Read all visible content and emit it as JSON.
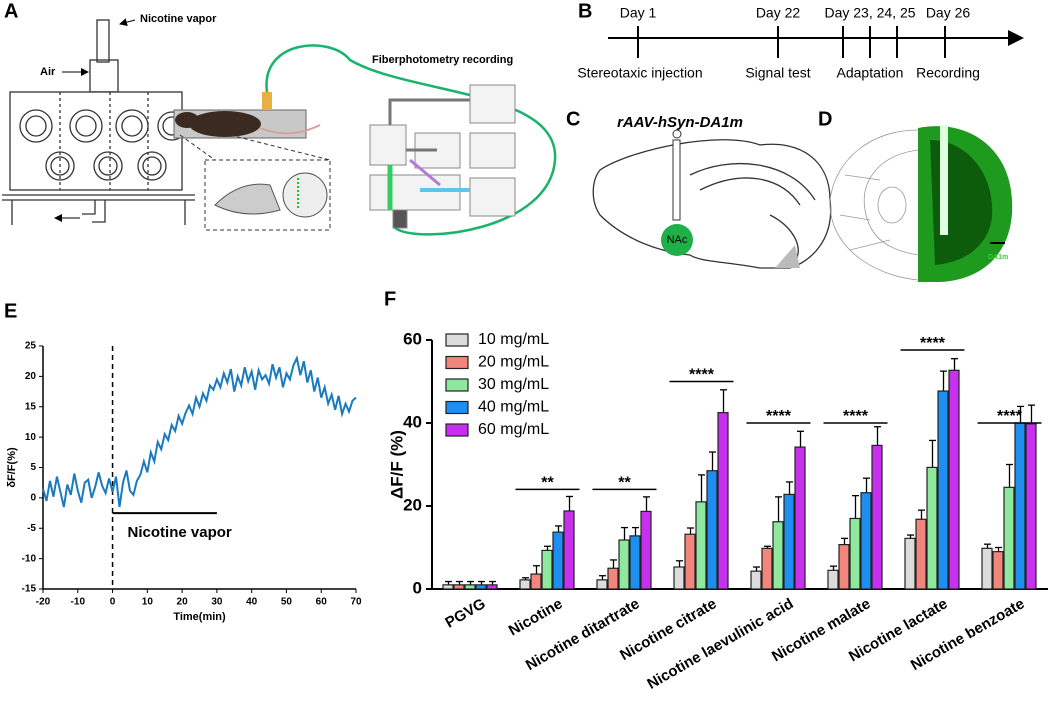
{
  "panels": {
    "a": {
      "label": "A",
      "nicotine_vapor": "Nicotine vapor",
      "air": "Air",
      "recording": "Fiberphotometry recording"
    },
    "b": {
      "label": "B",
      "timeline": [
        {
          "day": "Day 1",
          "event": "Stereotaxic injection"
        },
        {
          "day": "Day 22",
          "event": "Signal test"
        },
        {
          "day": "Day 23, 24, 25",
          "event": "Adaptation"
        },
        {
          "day": "Day 26",
          "event": "Recording"
        }
      ]
    },
    "c": {
      "label": "C",
      "virus": "rAAV-hSyn-DA1m",
      "region": "NAc"
    },
    "d": {
      "label": "D",
      "stain": "DA1m"
    }
  },
  "chart_data": [
    {
      "type": "line",
      "panel_label": "E",
      "x": [
        -20,
        -19,
        -18,
        -17,
        -16,
        -15,
        -14,
        -13,
        -12,
        -11,
        -10,
        -9,
        -8,
        -7,
        -6,
        -5,
        -4,
        -3,
        -2,
        -1,
        0,
        1,
        2,
        3,
        4,
        5,
        6,
        7,
        8,
        9,
        10,
        11,
        12,
        13,
        14,
        15,
        16,
        17,
        18,
        19,
        20,
        21,
        22,
        23,
        24,
        25,
        26,
        27,
        28,
        29,
        30,
        31,
        32,
        33,
        34,
        35,
        36,
        37,
        38,
        39,
        40,
        41,
        42,
        43,
        44,
        45,
        46,
        47,
        48,
        49,
        50,
        51,
        52,
        53,
        54,
        55,
        56,
        57,
        58,
        59,
        60,
        61,
        62,
        63,
        64,
        65,
        66,
        67,
        68,
        69,
        70
      ],
      "series": [
        {
          "color": "#1a7abf",
          "values": [
            1.5,
            -0.5,
            2.8,
            0.2,
            3.5,
            1.0,
            -1.5,
            2.2,
            0.5,
            4.0,
            1.2,
            -0.8,
            2.5,
            3.0,
            0.0,
            1.8,
            4.2,
            2.0,
            0.8,
            3.2,
            1.0,
            3.5,
            -1.5,
            2.5,
            4.5,
            1.2,
            0.5,
            2.8,
            3.8,
            6.0,
            4.2,
            7.5,
            6.0,
            9.2,
            8.0,
            10.5,
            9.5,
            12.0,
            11.0,
            13.5,
            12.2,
            14.0,
            15.2,
            13.8,
            16.5,
            15.0,
            17.2,
            16.0,
            18.5,
            17.8,
            19.5,
            18.2,
            20.5,
            19.0,
            21.2,
            17.5,
            20.0,
            18.5,
            21.5,
            19.2,
            20.8,
            17.8,
            21.0,
            19.5,
            20.2,
            18.8,
            22.0,
            19.8,
            21.5,
            18.2,
            20.5,
            19.5,
            21.8,
            23.0,
            20.2,
            22.5,
            19.0,
            21.0,
            17.5,
            19.8,
            16.5,
            18.2,
            15.5,
            17.0,
            14.5,
            16.8,
            13.8,
            15.5,
            14.2,
            16.0,
            16.5
          ]
        }
      ],
      "xlim": [
        -20,
        70
      ],
      "xticks": [
        -20,
        -10,
        0,
        10,
        20,
        30,
        40,
        50,
        60,
        70
      ],
      "ylim": [
        -15,
        25
      ],
      "yticks": [
        -15,
        -10,
        -5,
        0,
        5,
        10,
        15,
        20,
        25
      ],
      "xlabel": "Time(min)",
      "ylabel": "δF/F(%)",
      "event_x": 0,
      "annotation": {
        "text": "Nicotine vapor",
        "x": [
          0,
          30
        ],
        "y": -2.5
      }
    },
    {
      "type": "bar",
      "panel_label": "F",
      "categories": [
        "PGVG",
        "Nicotine",
        "Nicotine ditartrate",
        "Nicotine citrate",
        "Nicotine laevulinic acid",
        "Nicotine malate",
        "Nicotine lactate",
        "Nicotine benzoate"
      ],
      "series": [
        {
          "name": "10 mg/mL",
          "color": "#dcdcdc",
          "values": [
            1.0,
            2.2,
            2.2,
            5.3,
            4.3,
            4.5,
            12.2,
            9.8
          ],
          "errors": [
            0.8,
            0.5,
            1.0,
            1.5,
            1.0,
            1.0,
            0.8,
            1.0
          ]
        },
        {
          "name": "20 mg/mL",
          "color": "#f2857c",
          "values": [
            1.0,
            3.6,
            5.0,
            13.2,
            9.8,
            10.7,
            16.8,
            9.0
          ],
          "errors": [
            0.8,
            2.0,
            2.0,
            1.5,
            0.5,
            1.5,
            2.2,
            1.0
          ]
        },
        {
          "name": "30 mg/mL",
          "color": "#8ee89e",
          "values": [
            1.0,
            9.3,
            11.8,
            21.0,
            16.2,
            17.0,
            29.3,
            24.5
          ],
          "errors": [
            0.8,
            1.0,
            3.0,
            6.5,
            6.0,
            5.5,
            6.5,
            5.5
          ]
        },
        {
          "name": "40 mg/mL",
          "color": "#1e8ff0",
          "values": [
            1.0,
            13.7,
            12.8,
            28.5,
            22.8,
            23.2,
            47.7,
            40.0
          ],
          "errors": [
            0.8,
            1.5,
            2.0,
            4.5,
            3.0,
            3.5,
            4.8,
            4.0
          ]
        },
        {
          "name": "60 mg/mL",
          "color": "#c730ee",
          "values": [
            1.0,
            18.8,
            18.7,
            42.5,
            34.2,
            34.6,
            52.7,
            39.8
          ],
          "errors": [
            0.8,
            3.5,
            3.5,
            5.5,
            3.8,
            4.5,
            2.8,
            4.5
          ]
        }
      ],
      "ylim": [
        0,
        60
      ],
      "yticks": [
        0,
        20,
        40,
        60
      ],
      "ylabel": "ΔF/F (%)",
      "legend": "upper left",
      "significance": [
        {
          "category": 1,
          "text": "**",
          "y": 24
        },
        {
          "category": 2,
          "text": "**",
          "y": 24
        },
        {
          "category": 3,
          "text": "****",
          "y": 50
        },
        {
          "category": 4,
          "text": "****",
          "y": 40
        },
        {
          "category": 5,
          "text": "****",
          "y": 40
        },
        {
          "category": 6,
          "text": "****",
          "y": 57.6
        },
        {
          "category": 7,
          "text": "****",
          "y": 40
        }
      ]
    }
  ]
}
